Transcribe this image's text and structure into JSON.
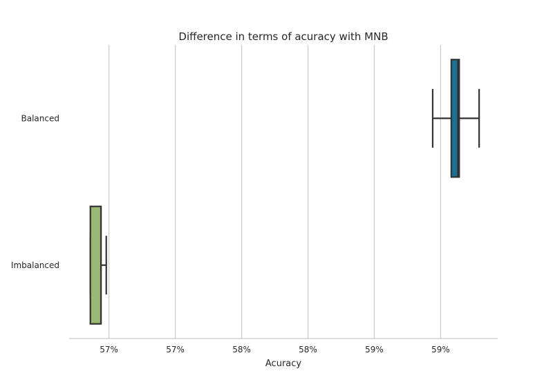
{
  "chart_data": {
    "type": "boxplot",
    "orientation": "horizontal",
    "title": "Difference in terms of acuracy with MNB",
    "xlabel": "Acuracy",
    "ylabel": "",
    "xlim": [
      0.5645,
      0.5968
    ],
    "grid": "vertical",
    "x_ticks": [
      {
        "value": 0.5675,
        "label": "57%"
      },
      {
        "value": 0.5725,
        "label": "57%"
      },
      {
        "value": 0.5775,
        "label": "58%"
      },
      {
        "value": 0.5825,
        "label": "58%"
      },
      {
        "value": 0.5875,
        "label": "59%"
      },
      {
        "value": 0.5925,
        "label": "59%"
      }
    ],
    "categories": [
      "Balanced",
      "Imbalanced"
    ],
    "series": [
      {
        "name": "Balanced",
        "color": "#1a6f93",
        "whisker_low": 0.5919,
        "q1": 0.5933,
        "median": 0.5938,
        "q3": 0.5939,
        "whisker_high": 0.5954
      },
      {
        "name": "Imbalanced",
        "color": "#9ab973",
        "whisker_low": 0.5661,
        "q1": 0.5661,
        "median": 0.5669,
        "q3": 0.5669,
        "whisker_high": 0.5673
      }
    ]
  }
}
